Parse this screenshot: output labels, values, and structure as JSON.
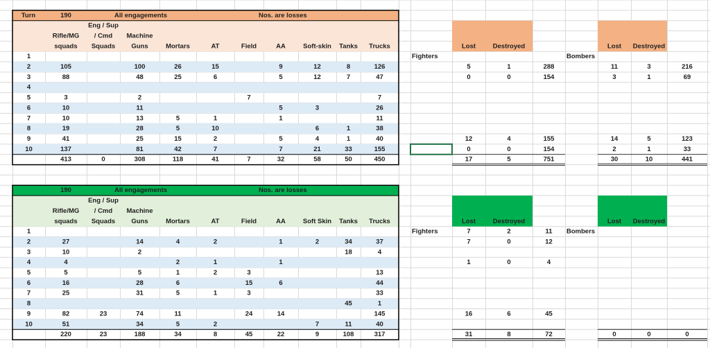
{
  "tables": [
    {
      "title": {
        "turn": "Turn",
        "number": "190",
        "label": "All engagements",
        "note": "Nos. are losses"
      },
      "header_rows": [
        [
          null,
          null,
          "Eng / Sup",
          null,
          null,
          null,
          null,
          null,
          null,
          null,
          null,
          null,
          null,
          null,
          null,
          null,
          null,
          null,
          null
        ],
        [
          null,
          "Rifle/MG",
          "/ Cmd",
          "Machine",
          null,
          null,
          null,
          null,
          null,
          null,
          null,
          null,
          null,
          null,
          null,
          null,
          null,
          null,
          null
        ],
        [
          null,
          "squads",
          "Squads",
          "Guns",
          "Mortars",
          "AT",
          "Field",
          "AA",
          "Soft-skin",
          "Tanks",
          "Trucks",
          null,
          "Lost",
          "Destroyed",
          null,
          null,
          "Lost",
          "Destroyed",
          null
        ]
      ],
      "rows": [
        [
          1,
          null,
          null,
          null,
          null,
          null,
          null,
          null,
          null,
          null,
          null,
          "Fighters",
          null,
          null,
          null,
          "Bombers",
          null,
          null,
          null
        ],
        [
          2,
          105,
          null,
          100,
          26,
          15,
          null,
          9,
          12,
          8,
          126,
          null,
          5,
          1,
          288,
          null,
          11,
          3,
          216
        ],
        [
          3,
          88,
          null,
          48,
          25,
          6,
          null,
          5,
          12,
          7,
          47,
          null,
          0,
          0,
          154,
          null,
          3,
          1,
          69
        ],
        [
          4,
          null,
          null,
          null,
          null,
          null,
          null,
          null,
          null,
          null,
          null,
          null,
          null,
          null,
          null,
          null,
          null,
          null,
          null
        ],
        [
          5,
          3,
          null,
          2,
          null,
          null,
          7,
          null,
          null,
          null,
          7,
          null,
          null,
          null,
          null,
          null,
          null,
          null,
          null
        ],
        [
          6,
          10,
          null,
          11,
          null,
          null,
          null,
          5,
          3,
          null,
          26,
          null,
          null,
          null,
          null,
          null,
          null,
          null,
          null
        ],
        [
          7,
          10,
          null,
          13,
          5,
          1,
          null,
          1,
          null,
          null,
          11,
          null,
          null,
          null,
          null,
          null,
          null,
          null,
          null
        ],
        [
          8,
          19,
          null,
          28,
          5,
          10,
          null,
          null,
          6,
          1,
          38,
          null,
          null,
          null,
          null,
          null,
          null,
          null,
          null
        ],
        [
          9,
          41,
          null,
          25,
          15,
          2,
          null,
          5,
          4,
          1,
          40,
          null,
          12,
          4,
          155,
          null,
          14,
          5,
          123
        ],
        [
          10,
          137,
          null,
          81,
          42,
          7,
          null,
          7,
          21,
          33,
          155,
          null,
          0,
          0,
          154,
          null,
          2,
          1,
          33
        ]
      ],
      "total": [
        null,
        413,
        0,
        308,
        118,
        41,
        7,
        32,
        58,
        50,
        450,
        null,
        17,
        5,
        751,
        null,
        30,
        10,
        441
      ]
    },
    {
      "title": {
        "number": "190",
        "label": "All engagements",
        "note": "Nos. are losses"
      },
      "header_rows": [
        [
          null,
          null,
          "Eng / Sup",
          null,
          null,
          null,
          null,
          null,
          null,
          null,
          null,
          null,
          null,
          null,
          null,
          null,
          null,
          null,
          null
        ],
        [
          null,
          "Rifle/MG",
          "/ Cmd",
          "Machine",
          null,
          null,
          null,
          null,
          null,
          null,
          null,
          null,
          null,
          null,
          null,
          null,
          null,
          null,
          null
        ],
        [
          null,
          "squads",
          "Squads",
          "Guns",
          "Mortars",
          "AT",
          "Field",
          "AA",
          "Soft Skin",
          "Tanks",
          "Trucks",
          null,
          "Lost",
          "Destroyed",
          null,
          null,
          "Lost",
          "Destroyed",
          null
        ]
      ],
      "rows": [
        [
          1,
          null,
          null,
          null,
          null,
          null,
          null,
          null,
          null,
          null,
          null,
          "Fighters",
          7,
          2,
          11,
          "Bombers",
          null,
          null,
          null
        ],
        [
          2,
          27,
          null,
          14,
          4,
          2,
          null,
          1,
          2,
          34,
          37,
          null,
          7,
          0,
          12,
          null,
          null,
          null,
          null
        ],
        [
          3,
          10,
          null,
          2,
          null,
          null,
          null,
          null,
          null,
          18,
          4,
          null,
          null,
          null,
          null,
          null,
          null,
          null,
          null
        ],
        [
          4,
          4,
          null,
          null,
          2,
          1,
          null,
          1,
          null,
          null,
          null,
          null,
          1,
          0,
          4,
          null,
          null,
          null,
          null
        ],
        [
          5,
          5,
          null,
          5,
          1,
          2,
          3,
          null,
          null,
          null,
          13,
          null,
          null,
          null,
          null,
          null,
          null,
          null,
          null
        ],
        [
          6,
          16,
          null,
          28,
          6,
          null,
          15,
          6,
          null,
          null,
          44,
          null,
          null,
          null,
          null,
          null,
          null,
          null,
          null
        ],
        [
          7,
          25,
          null,
          31,
          5,
          1,
          3,
          null,
          null,
          null,
          33,
          null,
          null,
          null,
          null,
          null,
          null,
          null,
          null
        ],
        [
          8,
          null,
          null,
          null,
          null,
          null,
          null,
          null,
          null,
          45,
          1,
          null,
          null,
          null,
          null,
          null,
          null,
          null,
          null
        ],
        [
          9,
          82,
          23,
          74,
          11,
          null,
          24,
          14,
          null,
          null,
          145,
          null,
          16,
          6,
          45,
          null,
          null,
          null,
          null
        ],
        [
          10,
          51,
          null,
          34,
          5,
          2,
          null,
          null,
          7,
          11,
          40,
          null,
          null,
          null,
          null,
          null,
          null,
          null,
          null
        ]
      ],
      "total": [
        null,
        220,
        23,
        188,
        34,
        8,
        45,
        22,
        9,
        108,
        317,
        null,
        31,
        8,
        72,
        null,
        0,
        0,
        0
      ]
    }
  ]
}
